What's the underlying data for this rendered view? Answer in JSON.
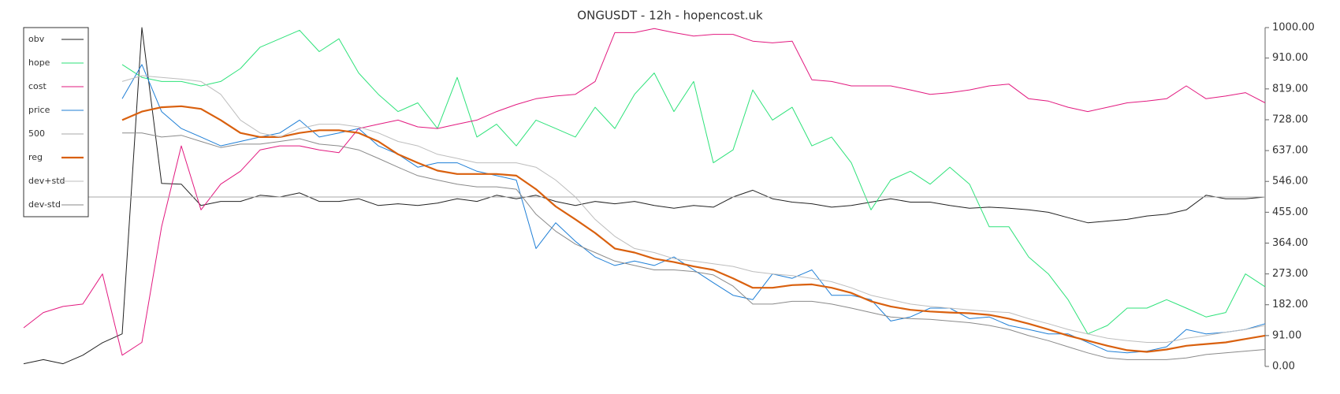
{
  "chart_data": {
    "type": "line",
    "title": "ONGUSDT - 12h - hopencost.uk",
    "ylim": [
      0,
      1000
    ],
    "yaxis_position": "right",
    "legend": "upper left",
    "grid": false,
    "yticks": [
      {
        "value": 0,
        "label": "0.00"
      },
      {
        "value": 91,
        "label": "91.00"
      },
      {
        "value": 182,
        "label": "182.00"
      },
      {
        "value": 273,
        "label": "273.00"
      },
      {
        "value": 364,
        "label": "364.00"
      },
      {
        "value": 455,
        "label": "455.00"
      },
      {
        "value": 546,
        "label": "546.00"
      },
      {
        "value": 637,
        "label": "637.00"
      },
      {
        "value": 728,
        "label": "728.00"
      },
      {
        "value": 819,
        "label": "819.00"
      },
      {
        "value": 910,
        "label": "910.00"
      },
      {
        "value": 1000,
        "label": "1000.00"
      }
    ],
    "series": [
      {
        "name": "obv",
        "color": "#222222",
        "width": 1,
        "values": [
          8,
          20,
          8,
          33,
          70,
          96,
          1000,
          540,
          538,
          475,
          487,
          487,
          505,
          500,
          512,
          487,
          487,
          495,
          475,
          480,
          475,
          482,
          495,
          487,
          505,
          495,
          505,
          487,
          475,
          487,
          480,
          487,
          475,
          467,
          475,
          470,
          500,
          520,
          495,
          485,
          480,
          470,
          475,
          485,
          495,
          485,
          485,
          475,
          467,
          470,
          467,
          462,
          455,
          439,
          424,
          429,
          434,
          444,
          449,
          462,
          505,
          495,
          495,
          500
        ]
      },
      {
        "name": "hope",
        "color": "#2ee27a",
        "width": 1,
        "values": [
          null,
          null,
          null,
          null,
          null,
          891,
          853,
          841,
          841,
          828,
          841,
          879,
          942,
          967,
          992,
          929,
          967,
          866,
          803,
          752,
          778,
          702,
          853,
          677,
          715,
          651,
          727,
          702,
          677,
          765,
          702,
          803,
          866,
          752,
          841,
          601,
          639,
          816,
          727,
          765,
          651,
          677,
          601,
          462,
          550,
          576,
          538,
          588,
          538,
          412,
          412,
          323,
          273,
          197,
          96,
          121,
          172,
          172,
          197,
          172,
          146,
          159,
          273,
          235
        ]
      },
      {
        "name": "cost",
        "color": "#e2197f",
        "width": 1,
        "values": [
          114,
          159,
          177,
          184,
          273,
          33,
          71,
          412,
          651,
          462,
          538,
          576,
          639,
          651,
          651,
          639,
          631,
          702,
          715,
          727,
          707,
          702,
          715,
          727,
          752,
          773,
          790,
          798,
          803,
          841,
          985,
          985,
          997,
          985,
          975,
          980,
          980,
          960,
          955,
          960,
          846,
          841,
          828,
          828,
          828,
          816,
          803,
          808,
          816,
          828,
          833,
          790,
          783,
          765,
          752,
          765,
          778,
          783,
          790,
          828,
          790,
          798,
          808,
          778
        ]
      },
      {
        "name": "price",
        "color": "#1f7fd6",
        "width": 1,
        "values": [
          null,
          null,
          null,
          null,
          null,
          790,
          891,
          752,
          702,
          677,
          651,
          664,
          677,
          689,
          727,
          677,
          689,
          702,
          651,
          626,
          588,
          601,
          601,
          576,
          563,
          550,
          348,
          424,
          369,
          323,
          298,
          311,
          298,
          323,
          285,
          247,
          210,
          197,
          273,
          260,
          285,
          210,
          210,
          197,
          134,
          146,
          172,
          172,
          141,
          146,
          121,
          109,
          96,
          96,
          71,
          45,
          40,
          45,
          58,
          109,
          96,
          101,
          109,
          126
        ]
      },
      {
        "name": "500",
        "color": "#aaaaaa",
        "width": 1,
        "values": [
          500,
          500,
          500,
          500,
          500,
          500,
          500,
          500,
          500,
          500,
          500,
          500,
          500,
          500,
          500,
          500,
          500,
          500,
          500,
          500,
          500,
          500,
          500,
          500,
          500,
          500,
          500,
          500,
          500,
          500,
          500,
          500,
          500,
          500,
          500,
          500,
          500,
          500,
          500,
          500,
          500,
          500,
          500,
          500,
          500,
          500,
          500,
          500,
          500,
          500,
          500,
          500,
          500,
          500,
          500,
          500,
          500,
          500,
          500,
          500,
          500,
          500,
          500,
          500
        ]
      },
      {
        "name": "reg",
        "color": "#d9600e",
        "width": 2.2,
        "values": [
          null,
          null,
          null,
          null,
          null,
          727,
          752,
          765,
          768,
          760,
          727,
          689,
          677,
          677,
          689,
          697,
          697,
          689,
          664,
          626,
          601,
          578,
          568,
          568,
          568,
          563,
          523,
          472,
          434,
          394,
          348,
          336,
          318,
          308,
          295,
          285,
          260,
          232,
          232,
          240,
          242,
          232,
          217,
          192,
          177,
          167,
          162,
          159,
          157,
          152,
          141,
          126,
          109,
          91,
          76,
          61,
          48,
          43,
          50,
          61,
          66,
          71,
          81,
          91
        ]
      },
      {
        "name": "dev+std",
        "color": "#bdbdbd",
        "width": 1,
        "values": [
          null,
          null,
          null,
          null,
          null,
          841,
          858,
          853,
          848,
          841,
          803,
          727,
          689,
          677,
          702,
          715,
          715,
          707,
          689,
          664,
          651,
          626,
          614,
          601,
          601,
          601,
          588,
          550,
          500,
          434,
          384,
          348,
          336,
          318,
          311,
          303,
          295,
          280,
          273,
          268,
          260,
          250,
          232,
          210,
          197,
          184,
          177,
          172,
          167,
          162,
          159,
          141,
          126,
          109,
          96,
          83,
          76,
          71,
          71,
          83,
          91,
          101,
          109,
          121
        ]
      },
      {
        "name": "dev-std",
        "color": "#8a8a8a",
        "width": 1,
        "values": [
          null,
          null,
          null,
          null,
          null,
          689,
          689,
          677,
          682,
          664,
          646,
          656,
          656,
          664,
          672,
          656,
          651,
          639,
          614,
          588,
          563,
          550,
          538,
          530,
          530,
          523,
          449,
          399,
          361,
          336,
          311,
          298,
          285,
          285,
          280,
          270,
          237,
          184,
          184,
          192,
          192,
          184,
          172,
          159,
          146,
          141,
          139,
          134,
          129,
          121,
          109,
          91,
          76,
          58,
          40,
          25,
          20,
          20,
          20,
          25,
          35,
          40,
          45,
          50
        ]
      }
    ]
  }
}
